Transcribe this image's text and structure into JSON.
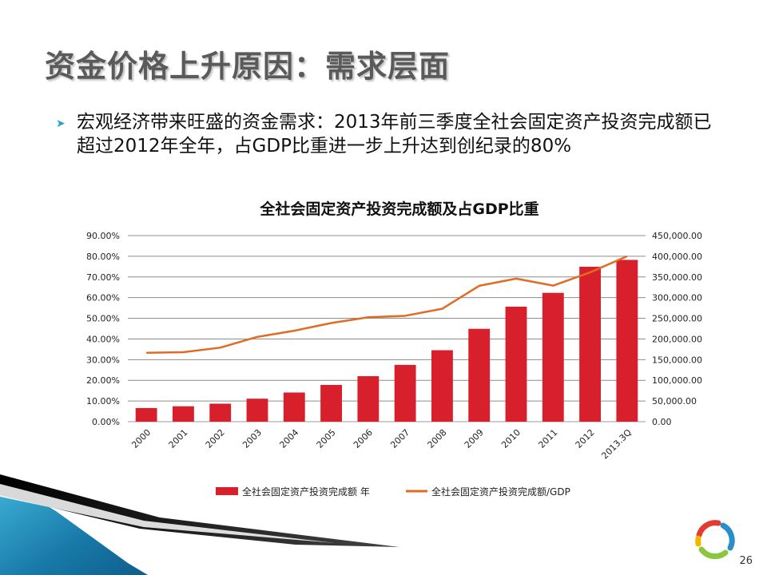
{
  "slide": {
    "title": "资金价格上升原因：需求层面",
    "bullet": "宏观经济带来旺盛的资金需求：2013年前三季度全社会固定资产投资完成额已超过2012年全年，占GDP比重进一步上升达到创纪录的80%",
    "page_number": "26"
  },
  "colors": {
    "bar": "#d7202b",
    "line": "#e06b25",
    "title_gray": "#5a5a5a",
    "accent_blue": "#1e90c0"
  },
  "chart_data": {
    "type": "bar",
    "title": "全社会固定资产投资完成额及占GDP比重",
    "categories": [
      "2000",
      "2001",
      "2002",
      "2003",
      "2004",
      "2005",
      "2006",
      "2007",
      "2008",
      "2009",
      "2010",
      "2011",
      "2012",
      "2013.3Q"
    ],
    "series": [
      {
        "name": "全社会固定资产投资完成额 年",
        "type": "bar",
        "axis": "right",
        "values": [
          32900,
          37200,
          43500,
          55600,
          70500,
          88800,
          110000,
          137300,
          172800,
          224600,
          278100,
          311500,
          374700,
          391300
        ]
      },
      {
        "name": "全社会固定资产投资完成额/GDP",
        "type": "line",
        "axis": "left",
        "values": [
          0.333,
          0.336,
          0.358,
          0.41,
          0.44,
          0.477,
          0.505,
          0.512,
          0.546,
          0.657,
          0.692,
          0.658,
          0.722,
          0.8
        ]
      }
    ],
    "left_axis": {
      "ylim": [
        0,
        0.9
      ],
      "ticks": [
        "0.00%",
        "10.00%",
        "20.00%",
        "30.00%",
        "40.00%",
        "50.00%",
        "60.00%",
        "70.00%",
        "80.00%",
        "90.00%"
      ]
    },
    "right_axis": {
      "ylim": [
        0,
        450000
      ],
      "ticks": [
        "0.00",
        "50,000.00",
        "100,000.00",
        "150,000.00",
        "200,000.00",
        "250,000.00",
        "300,000.00",
        "350,000.00",
        "400,000.00",
        "450,000.00"
      ]
    },
    "grid": true,
    "legend_position": "bottom"
  }
}
